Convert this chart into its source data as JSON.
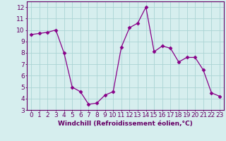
{
  "x": [
    0,
    1,
    2,
    3,
    4,
    5,
    6,
    7,
    8,
    9,
    10,
    11,
    12,
    13,
    14,
    15,
    16,
    17,
    18,
    19,
    20,
    21,
    22,
    23
  ],
  "y": [
    9.6,
    9.7,
    9.8,
    10.0,
    8.0,
    5.0,
    4.6,
    3.5,
    3.6,
    4.3,
    4.6,
    8.5,
    10.2,
    10.6,
    12.0,
    8.1,
    8.6,
    8.4,
    7.2,
    7.6,
    7.6,
    6.5,
    4.5,
    4.2
  ],
  "line_color": "#880088",
  "marker": "D",
  "marker_size": 2.5,
  "bg_color": "#d6eeee",
  "ylim": [
    3,
    12.5
  ],
  "xlim": [
    -0.5,
    23.5
  ],
  "yticks": [
    3,
    4,
    5,
    6,
    7,
    8,
    9,
    10,
    11,
    12
  ],
  "xticks": [
    0,
    1,
    2,
    3,
    4,
    5,
    6,
    7,
    8,
    9,
    10,
    11,
    12,
    13,
    14,
    15,
    16,
    17,
    18,
    19,
    20,
    21,
    22,
    23
  ],
  "grid_color": "#aad4d4",
  "axis_color": "#660066",
  "tick_label_color": "#660066",
  "xlabel": "Windchill (Refroidissement éolien,°C)",
  "xlabel_color": "#660066",
  "xlabel_fontsize": 6.5,
  "tick_fontsize": 6.5
}
